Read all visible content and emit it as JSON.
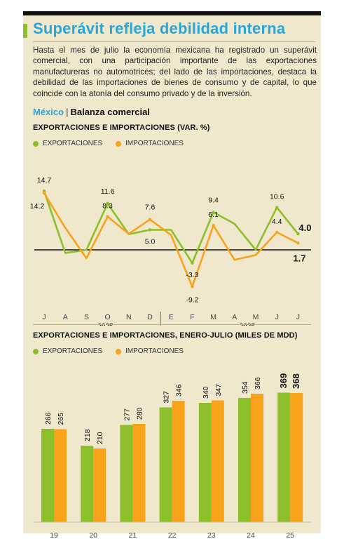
{
  "title": "Superávit refleja debilidad interna",
  "intro": "Hasta el mes de julio la economía mexicana ha registrado un superávit comercial, con una participación importante de las exportaciones manufactureras no automotrices; del lado de las importaciones, destaca la debilidad de las importaciones de bienes de consumo y de capital, lo que coincide con la atonía del consumo privado y de la inversión.",
  "section": {
    "country": "México",
    "separator": "|",
    "name": "Balanza comercial"
  },
  "colors": {
    "exports": "#8cbf2a",
    "imports": "#f9a21b",
    "accent": "#27a6dc",
    "panel": "#efe8cc"
  },
  "chart_data": [
    {
      "type": "line",
      "title": "EXPORTACIONES E IMPORTACIONES (VAR. %)",
      "legend": [
        "EXPORTACIONES",
        "IMPORTACIONES"
      ],
      "x": [
        "J",
        "A",
        "S",
        "O",
        "N",
        "D",
        "E",
        "F",
        "M",
        "A",
        "M",
        "J",
        "J"
      ],
      "year_labels": [
        "2025",
        "2025"
      ],
      "series": [
        {
          "name": "EXPORTACIONES",
          "values": [
            14.7,
            -0.8,
            0.0,
            11.6,
            3.9,
            5.0,
            5.0,
            -3.3,
            9.4,
            6.5,
            0.0,
            10.6,
            4.0
          ]
        },
        {
          "name": "IMPORTACIONES",
          "values": [
            14.2,
            5.5,
            -2.1,
            8.3,
            4.0,
            7.6,
            3.7,
            -9.2,
            6.1,
            -2.5,
            -1.3,
            4.4,
            1.7
          ]
        }
      ],
      "labels": [
        "14.7",
        "14.2",
        "11.6",
        "8.3",
        "7.6",
        "5.0",
        "9.4",
        "6.1",
        "-3.3",
        "-9.2",
        "10.6",
        "4.4",
        "4.0",
        "1.7"
      ],
      "ylim": [
        -11,
        17
      ],
      "zero_line": true
    },
    {
      "type": "bar",
      "title": "EXPORTACIONES E IMPORTACIONES, ENERO-JULIO (MILES DE MDD)",
      "legend": [
        "EXPORTACIONES",
        "IMPORTACIONES"
      ],
      "categories": [
        "19",
        "20",
        "21",
        "22",
        "23",
        "24",
        "25"
      ],
      "series": [
        {
          "name": "EXPORTACIONES",
          "values": [
            266,
            218,
            277,
            327,
            340,
            354,
            369
          ]
        },
        {
          "name": "IMPORTACIONES",
          "values": [
            265,
            210,
            280,
            346,
            347,
            366,
            368
          ]
        }
      ],
      "value_labels": {
        "exports": [
          "266",
          "218",
          "277",
          "327",
          "340",
          "354",
          "369"
        ],
        "imports": [
          "265",
          "210",
          "280",
          "346",
          "347",
          "366",
          "368"
        ]
      },
      "ylim": [
        0,
        400
      ]
    }
  ]
}
